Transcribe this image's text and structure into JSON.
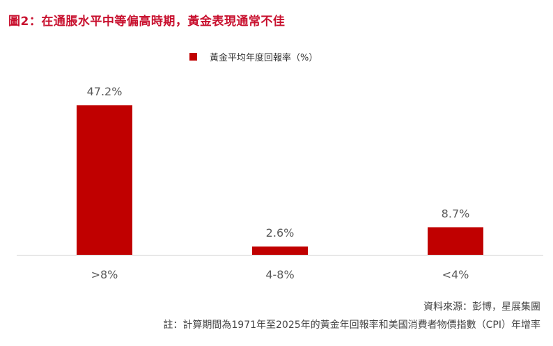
{
  "title": "圖2：在通脹水平中等偏高時期，黃金表現通常不佳",
  "colors": {
    "title": "#c8102e",
    "bar": "#c00000"
  },
  "chart_data": {
    "type": "bar",
    "title": "圖2：在通脹水平中等偏高時期，黃金表現通常不佳",
    "categories": [
      ">8%",
      "4-8%",
      "<4%"
    ],
    "series": [
      {
        "name": "黃金平均年度回報率（%）",
        "values": [
          47.2,
          2.6,
          8.7
        ]
      }
    ],
    "data_labels": [
      "47.2%",
      "2.6%",
      "8.7%"
    ],
    "ylim": [
      0,
      50
    ],
    "grid": false,
    "legend": "top-center",
    "xlabel": "",
    "ylabel": ""
  },
  "legend_label": "黃金平均年度回報率（%）",
  "source": "資料來源：彭博，星展集團",
  "note": "註：計算期間為1971年至2025年的黃金年回報率和美國消費者物價指數（CPI）年增率"
}
